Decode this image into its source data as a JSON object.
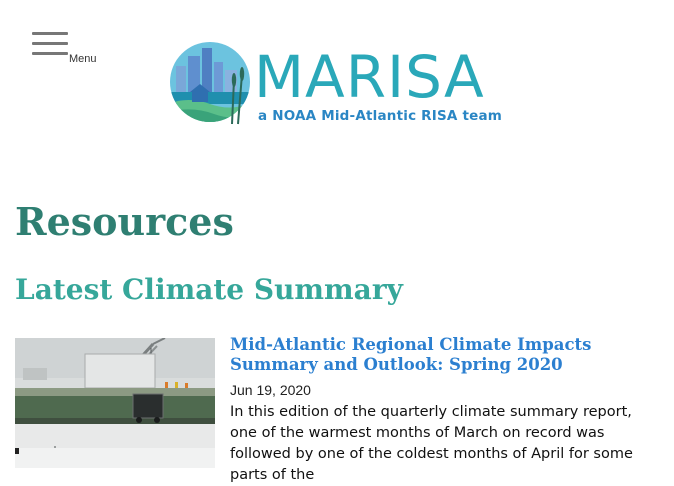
{
  "header": {
    "menu_label": "Menu",
    "logo": {
      "wordmark": "MARISA",
      "tagline": "a NOAA Mid-Atlantic RISA team"
    }
  },
  "main": {
    "page_title": "Resources",
    "section_title": "Latest Climate Summary",
    "summary_item": {
      "title": "Mid-Atlantic Regional Climate Impacts Summary and Outlook: Spring 2020",
      "date": "Jun 19, 2020",
      "excerpt": "In this edition of the quarterly climate summary report, one of the warmest months of March on record was followed by one of the coldest months of April for some parts of the"
    }
  },
  "colors": {
    "brand_teal": "#2aa8b9",
    "title_green": "#2f7f72",
    "section_green": "#36a79a",
    "link_blue": "#2b7fd0"
  },
  "icons": {
    "menu": "hamburger-icon"
  }
}
